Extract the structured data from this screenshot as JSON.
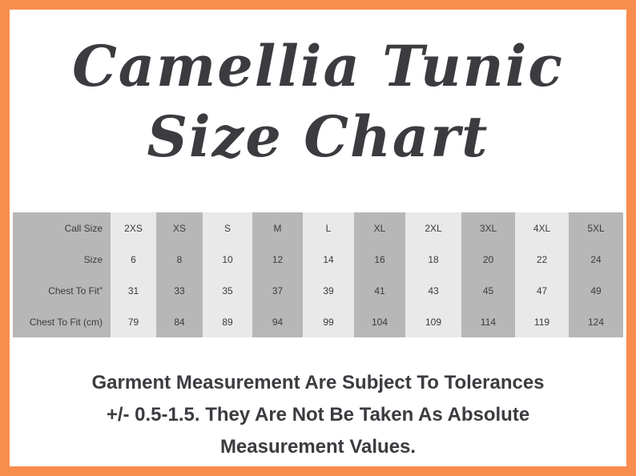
{
  "title": {
    "line1": "Camellia Tunic",
    "line2": "Size Chart"
  },
  "table": {
    "rows": [
      {
        "label": "Call Size",
        "values": [
          "2XS",
          "XS",
          "S",
          "M",
          "L",
          "XL",
          "2XL",
          "3XL",
          "4XL",
          "5XL"
        ]
      },
      {
        "label": "Size",
        "values": [
          "6",
          "8",
          "10",
          "12",
          "14",
          "16",
          "18",
          "20",
          "22",
          "24"
        ]
      },
      {
        "label": "Chest To Fit”",
        "values": [
          "31",
          "33",
          "35",
          "37",
          "39",
          "41",
          "43",
          "45",
          "47",
          "49"
        ]
      },
      {
        "label": "Chest To Fit (cm)",
        "values": [
          "79",
          "84",
          "89",
          "94",
          "99",
          "104",
          "109",
          "114",
          "119",
          "124"
        ]
      }
    ]
  },
  "note": {
    "line1": "Garment Measurement Are Subject To Tolerances",
    "line2": "+/- 0.5-1.5. They Are Not  Be Taken As Absolute",
    "line3": "Measurement Values."
  },
  "colors": {
    "border": "#F98D4D",
    "dark_column": "#B7B7B7",
    "light_column": "#E9E9E9",
    "text": "#3b3b40"
  }
}
